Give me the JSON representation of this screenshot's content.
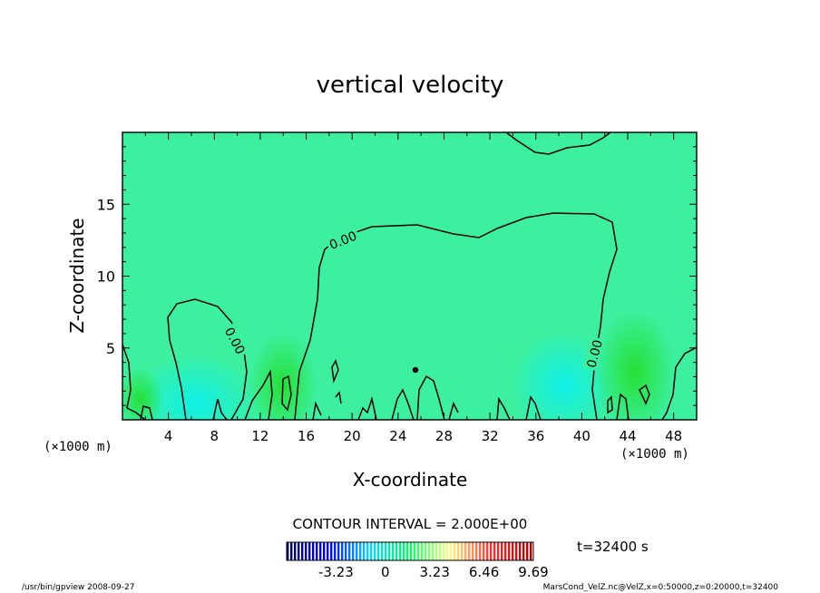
{
  "chart_data": {
    "type": "heatmap",
    "title": "vertical velocity",
    "xlabel": "X-coordinate",
    "ylabel": "Z-coordinate",
    "x_unit_left": "(×1000 m)",
    "x_unit_right": "(×1000 m)",
    "xlim": [
      0,
      50
    ],
    "ylim": [
      0,
      20
    ],
    "xticks": [
      "4",
      "8",
      "12",
      "16",
      "20",
      "24",
      "28",
      "32",
      "36",
      "40",
      "44",
      "48"
    ],
    "xtick_values": [
      4,
      8,
      12,
      16,
      20,
      24,
      28,
      32,
      36,
      40,
      44,
      48
    ],
    "yticks": [
      "5",
      "10",
      "15"
    ],
    "ytick_values": [
      5,
      10,
      15
    ],
    "contour_interval_text": "CONTOUR INTERVAL = 2.000E+00",
    "contour_labels": [
      {
        "text": "0.00",
        "x": 19.2,
        "z": 12.5
      },
      {
        "text": "0.00",
        "x": 9.8,
        "z": 5.5
      },
      {
        "text": "0.00",
        "x": 41.1,
        "z": 4.6
      }
    ],
    "colorbar": {
      "ticks": [
        "-3.23",
        "0",
        "3.23",
        "6.46",
        "9.69"
      ],
      "tick_values": [
        -3.23,
        0,
        3.23,
        6.46,
        9.69
      ],
      "range": [
        -6.46,
        9.69
      ],
      "colors": [
        "#000060",
        "#0000ff",
        "#00d8ff",
        "#00ff60",
        "#ffff80",
        "#ff3030",
        "#b00000"
      ]
    },
    "time_label": "t=32400 s",
    "footer_left": "/usr/bin/gpview   2008-09-27",
    "footer_right": "MarsCond_VelZ.nc@VelZ,x=0:50000,z=0:20000,t=32400"
  }
}
